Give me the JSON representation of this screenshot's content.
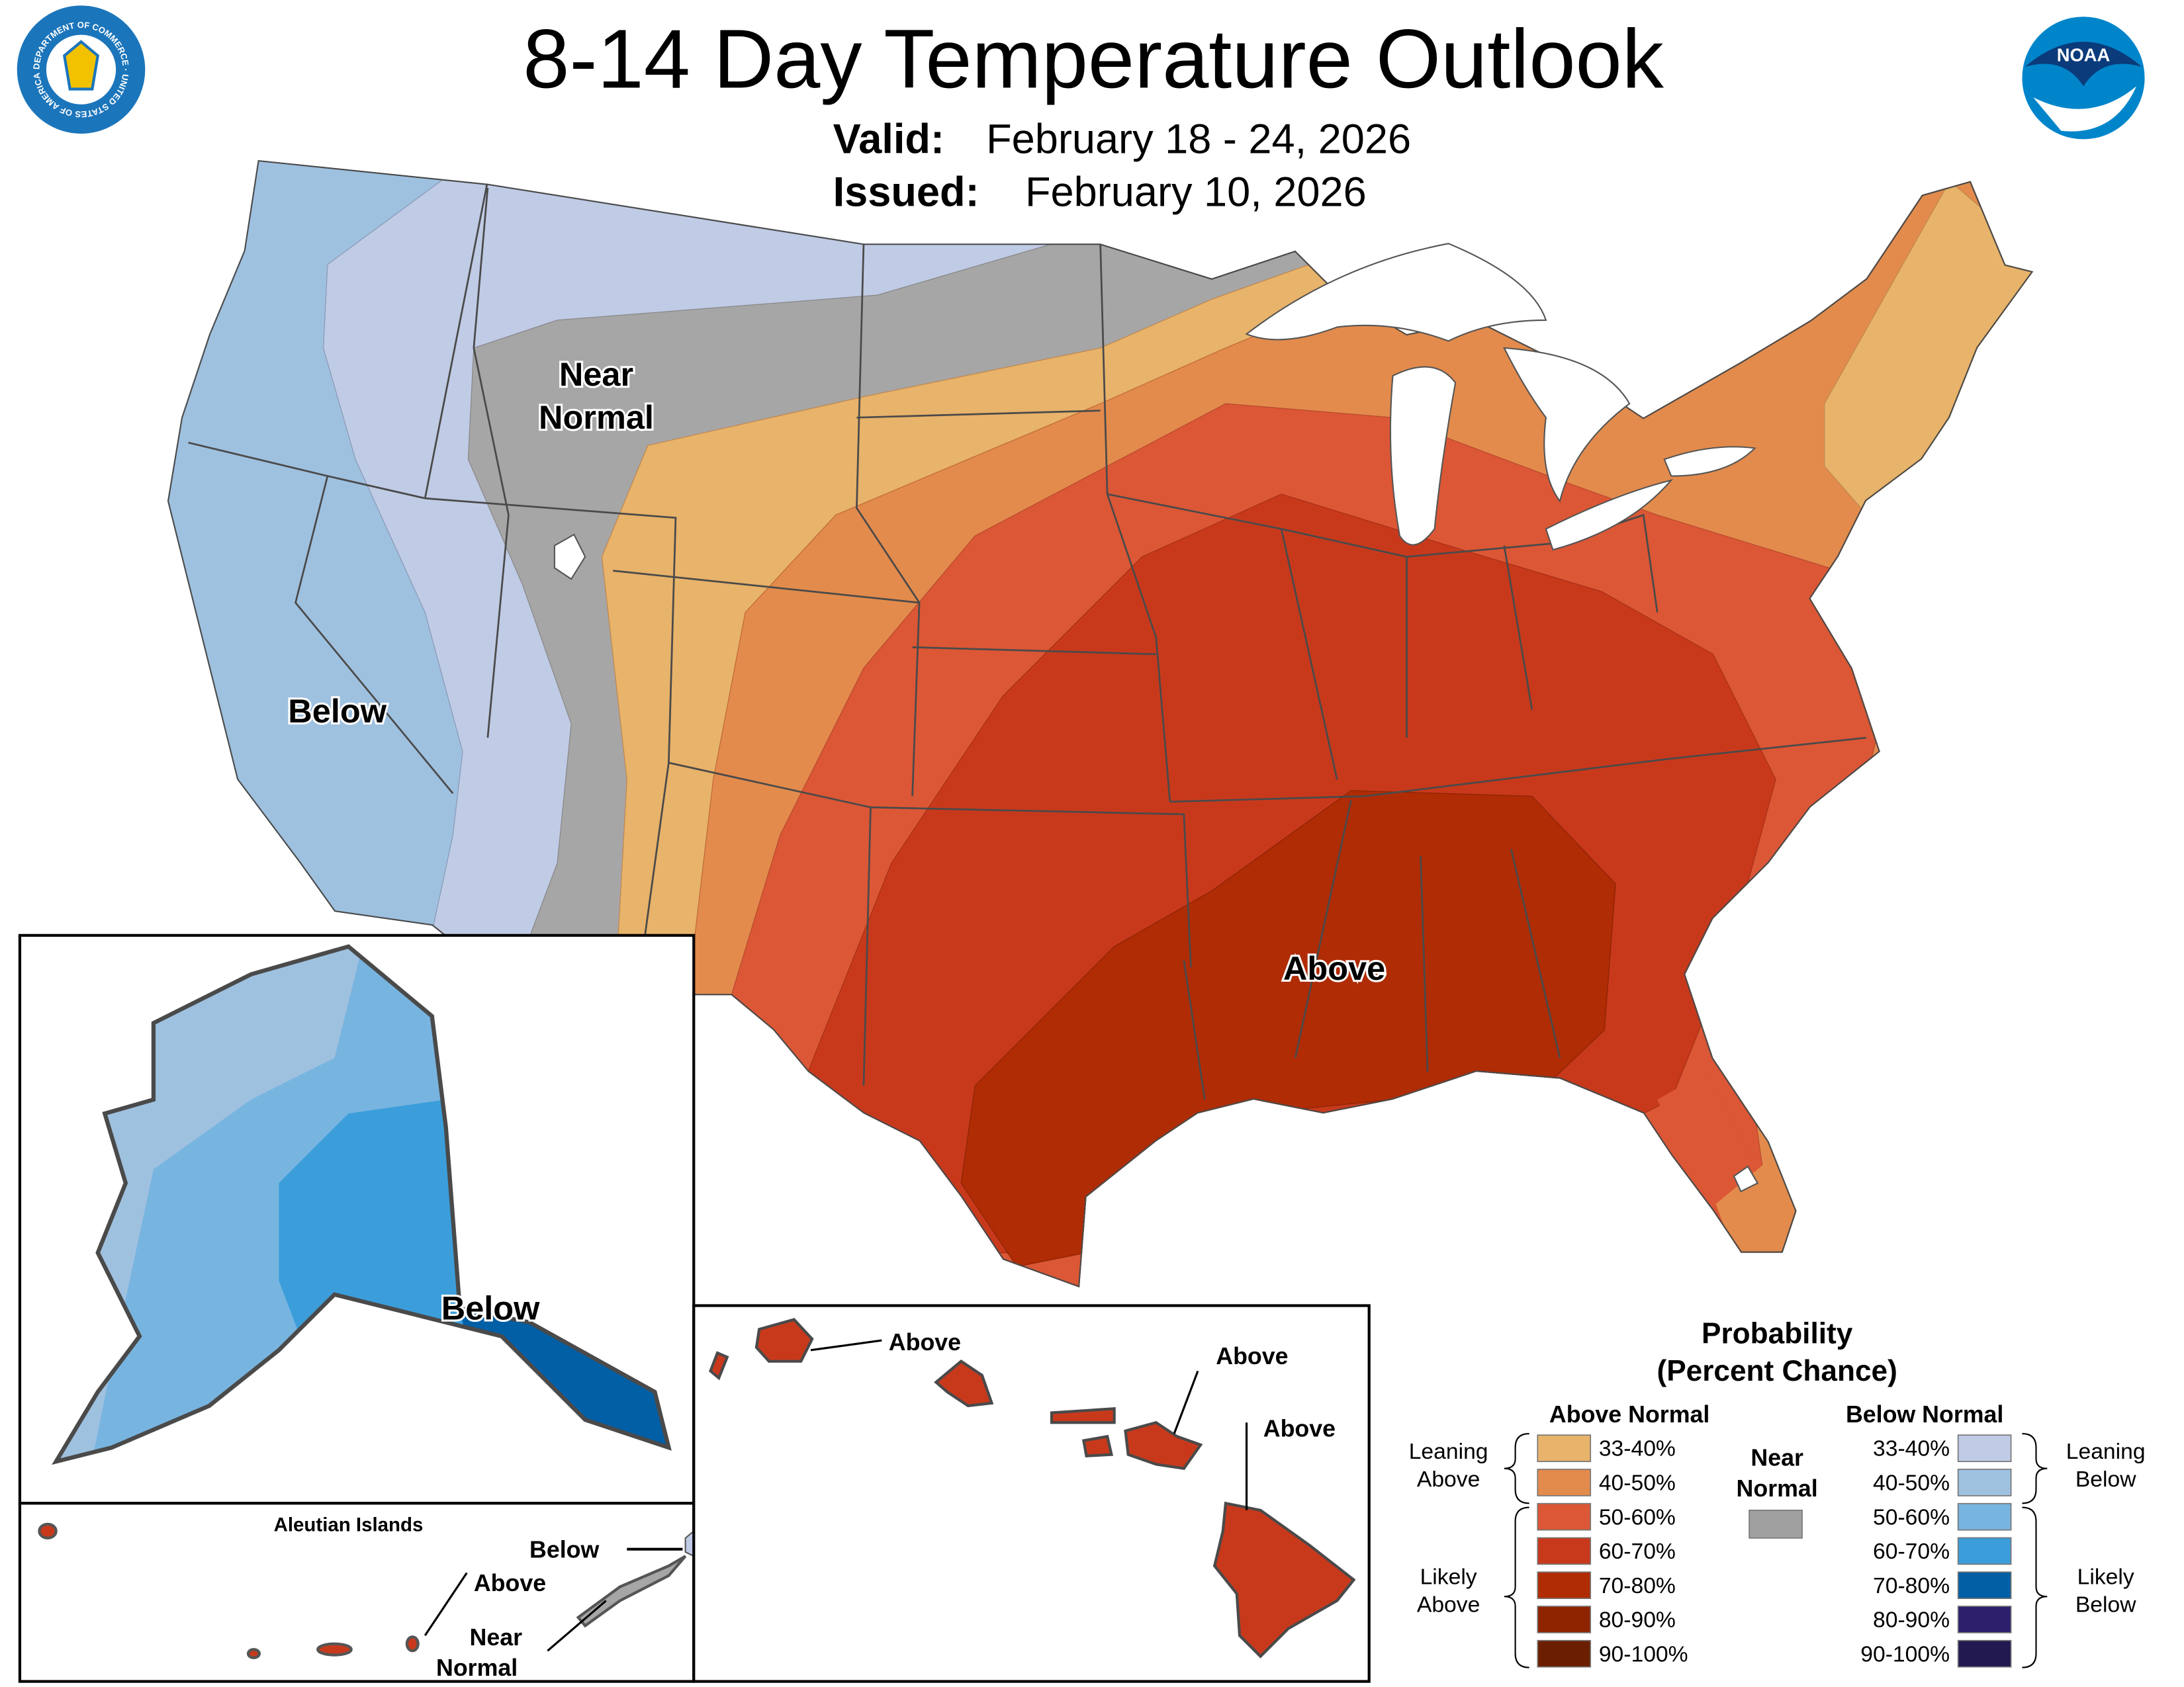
{
  "header": {
    "title": "8-14 Day Temperature Outlook",
    "valid_label": "Valid:",
    "valid_value": "February 18 - 24, 2026",
    "issued_label": "Issued:",
    "issued_value": "February 10, 2026",
    "left_logo": "Department of Commerce seal",
    "left_logo_text": "DEPARTMENT OF COMMERCE · UNITED STATES OF AMERICA",
    "right_logo": "NOAA logo",
    "right_logo_text": "NOAA"
  },
  "map_labels": {
    "conus_near_normal_1": "Near",
    "conus_near_normal_2": "Normal",
    "conus_below": "Below",
    "conus_above": "Above",
    "alaska_below": "Below",
    "aleutian_title": "Aleutian Islands",
    "aleutian_below": "Below",
    "aleutian_above": "Above",
    "aleutian_near_1": "Near",
    "aleutian_near_2": "Normal",
    "hawaii_above_1": "Above",
    "hawaii_above_2": "Above",
    "hawaii_above_3": "Above"
  },
  "legend": {
    "title_1": "Probability",
    "title_2": "(Percent Chance)",
    "above_header": "Above Normal",
    "below_header": "Below Normal",
    "near_1": "Near",
    "near_2": "Normal",
    "near_color": "#a0a0a0",
    "leaning_above_1": "Leaning",
    "leaning_above_2": "Above",
    "likely_above_1": "Likely",
    "likely_above_2": "Above",
    "leaning_below_1": "Leaning",
    "leaning_below_2": "Below",
    "likely_below_1": "Likely",
    "likely_below_2": "Below",
    "above": [
      {
        "range": "33-40%",
        "color": "#e8b36a"
      },
      {
        "range": "40-50%",
        "color": "#e38b4c"
      },
      {
        "range": "50-60%",
        "color": "#dc5735"
      },
      {
        "range": "60-70%",
        "color": "#c8391c"
      },
      {
        "range": "70-80%",
        "color": "#b02c05"
      },
      {
        "range": "80-90%",
        "color": "#8f2400"
      },
      {
        "range": "90-100%",
        "color": "#6b1f00"
      }
    ],
    "below": [
      {
        "range": "33-40%",
        "color": "#c0cbe5"
      },
      {
        "range": "40-50%",
        "color": "#9fc1e0"
      },
      {
        "range": "50-60%",
        "color": "#78b4e0"
      },
      {
        "range": "60-70%",
        "color": "#3b9edb"
      },
      {
        "range": "70-80%",
        "color": "#005fa5"
      },
      {
        "range": "80-90%",
        "color": "#2e1f6d"
      },
      {
        "range": "90-100%",
        "color": "#211950"
      }
    ]
  }
}
